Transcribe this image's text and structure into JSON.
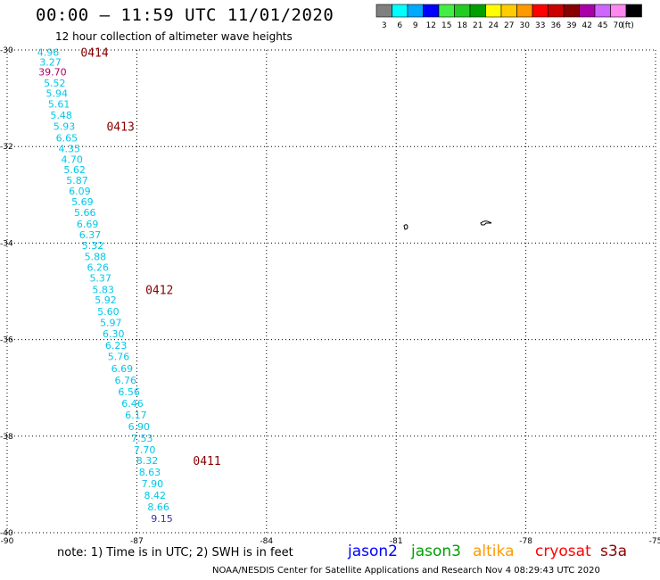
{
  "title": "00:00 – 11:59 UTC 11/01/2020",
  "subtitle": "12 hour collection of altimeter wave heights",
  "note": "note: 1) Time is in UTC; 2) SWH is in feet",
  "credit": "NOAA/NESDIS Center for Satellite Applications and Research   Nov  4 08:29:43 UTC 2020",
  "legend": {
    "unit": "(ft)",
    "bins": [
      {
        "label": "3",
        "color": "#808080"
      },
      {
        "label": "6",
        "color": "#00ffff"
      },
      {
        "label": "9",
        "color": "#00aaff"
      },
      {
        "label": "12",
        "color": "#0000ff"
      },
      {
        "label": "15",
        "color": "#44ee44"
      },
      {
        "label": "18",
        "color": "#22cc22"
      },
      {
        "label": "21",
        "color": "#00a000"
      },
      {
        "label": "24",
        "color": "#ffff00"
      },
      {
        "label": "27",
        "color": "#ffcc00"
      },
      {
        "label": "30",
        "color": "#ff9900"
      },
      {
        "label": "33",
        "color": "#ff0000"
      },
      {
        "label": "36",
        "color": "#cc0000"
      },
      {
        "label": "39",
        "color": "#880000"
      },
      {
        "label": "42",
        "color": "#aa00aa"
      },
      {
        "label": "45",
        "color": "#cc66ff"
      },
      {
        "label": "70",
        "color": "#ff88ee"
      },
      {
        "label": "",
        "color": "#000000"
      }
    ]
  },
  "satellites": [
    {
      "name": "jason2",
      "color": "#0000ff"
    },
    {
      "name": "jason3",
      "color": "#00a000"
    },
    {
      "name": "altika",
      "color": "#ff9900"
    },
    {
      "name": "cryosat",
      "color": "#ff0000"
    },
    {
      "name": "s3a",
      "color": "#880000"
    }
  ],
  "axes": {
    "lon_ticks": [
      "-90",
      "-87",
      "-84",
      "-81",
      "-78",
      "-75"
    ],
    "lat_ticks": [
      "-30",
      "-32",
      "-34",
      "-36",
      "-38",
      "-40"
    ],
    "lon_range": [
      -90,
      -75
    ],
    "lat_range": [
      -40,
      -30
    ]
  },
  "colors": {
    "track_text": "#00c8e8",
    "high_value": "#aa0066",
    "time_label": "#880000",
    "purple_low": "#3333aa"
  },
  "track": [
    {
      "v": "4.96",
      "lat": -30.05,
      "lon": -89.05
    },
    {
      "v": "3.27",
      "lat": -30.25,
      "lon": -89.0
    },
    {
      "v": "39.70",
      "lat": -30.45,
      "lon": -88.95,
      "hi": true
    },
    {
      "v": "5.52",
      "lat": -30.68,
      "lon": -88.9
    },
    {
      "v": "5.94",
      "lat": -30.9,
      "lon": -88.85
    },
    {
      "v": "5.61",
      "lat": -31.12,
      "lon": -88.8
    },
    {
      "v": "5.48",
      "lat": -31.35,
      "lon": -88.75
    },
    {
      "v": "5.93",
      "lat": -31.58,
      "lon": -88.68
    },
    {
      "v": "6.65",
      "lat": -31.82,
      "lon": -88.62
    },
    {
      "v": "4.35",
      "lat": -32.04,
      "lon": -88.56
    },
    {
      "v": "4.70",
      "lat": -32.26,
      "lon": -88.5
    },
    {
      "v": "5.62",
      "lat": -32.48,
      "lon": -88.44
    },
    {
      "v": "5.87",
      "lat": -32.7,
      "lon": -88.38
    },
    {
      "v": "6.09",
      "lat": -32.92,
      "lon": -88.32
    },
    {
      "v": "5.69",
      "lat": -33.14,
      "lon": -88.26
    },
    {
      "v": "5.66",
      "lat": -33.36,
      "lon": -88.2
    },
    {
      "v": "6.69",
      "lat": -33.6,
      "lon": -88.14
    },
    {
      "v": "6.37",
      "lat": -33.83,
      "lon": -88.08
    },
    {
      "v": "5.32",
      "lat": -34.05,
      "lon": -88.02
    },
    {
      "v": "5.88",
      "lat": -34.28,
      "lon": -87.96
    },
    {
      "v": "6.26",
      "lat": -34.5,
      "lon": -87.9
    },
    {
      "v": "5.37",
      "lat": -34.72,
      "lon": -87.84
    },
    {
      "v": "5.83",
      "lat": -34.96,
      "lon": -87.78
    },
    {
      "v": "5.92",
      "lat": -35.18,
      "lon": -87.72
    },
    {
      "v": "5.60",
      "lat": -35.42,
      "lon": -87.66
    },
    {
      "v": "5.97",
      "lat": -35.65,
      "lon": -87.6
    },
    {
      "v": "6.30",
      "lat": -35.88,
      "lon": -87.54
    },
    {
      "v": "6.23",
      "lat": -36.12,
      "lon": -87.48
    },
    {
      "v": "5.76",
      "lat": -36.35,
      "lon": -87.42
    },
    {
      "v": "6.69",
      "lat": -36.6,
      "lon": -87.34
    },
    {
      "v": "6.76",
      "lat": -36.84,
      "lon": -87.26
    },
    {
      "v": "6.56",
      "lat": -37.08,
      "lon": -87.18
    },
    {
      "v": "6.46",
      "lat": -37.32,
      "lon": -87.1
    },
    {
      "v": "6.17",
      "lat": -37.56,
      "lon": -87.02
    },
    {
      "v": "6.90",
      "lat": -37.8,
      "lon": -86.95
    },
    {
      "v": "7.53",
      "lat": -38.04,
      "lon": -86.88
    },
    {
      "v": "7.70",
      "lat": -38.28,
      "lon": -86.82
    },
    {
      "v": "8.32",
      "lat": -38.5,
      "lon": -86.76
    },
    {
      "v": "8.63",
      "lat": -38.74,
      "lon": -86.7
    },
    {
      "v": "7.90",
      "lat": -38.98,
      "lon": -86.64
    },
    {
      "v": "8.42",
      "lat": -39.22,
      "lon": -86.58
    },
    {
      "v": "8.66",
      "lat": -39.46,
      "lon": -86.5
    },
    {
      "v": "9.15",
      "lat": -39.7,
      "lon": -86.42,
      "lo": true
    }
  ],
  "time_labels": [
    {
      "text": "0414",
      "lat": -30.05,
      "lon": -88.3
    },
    {
      "text": "0413",
      "lat": -31.58,
      "lon": -87.7
    },
    {
      "text": "0412",
      "lat": -34.96,
      "lon": -86.8
    },
    {
      "text": "0411",
      "lat": -38.5,
      "lon": -85.7
    }
  ]
}
